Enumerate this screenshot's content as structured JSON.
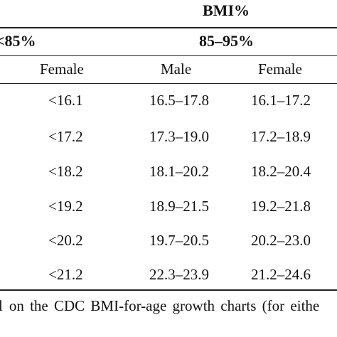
{
  "table": {
    "super_header": "BMI%",
    "group_headers": [
      "85%",
      "85–95%"
    ],
    "column_headers": [
      "Female",
      "Male",
      "Female"
    ],
    "rows": [
      [
        "<16.1",
        "16.5–17.8",
        "16.1–17.2"
      ],
      [
        "<17.2",
        "17.3–19.0",
        "17.2–18.9"
      ],
      [
        "<18.2",
        "18.1–20.2",
        "18.2–20.4"
      ],
      [
        "<19.2",
        "18.9–21.5",
        "19.2–21.8"
      ],
      [
        "<20.2",
        "19.7–20.5",
        "20.2–23.0"
      ],
      [
        "<21.2",
        "22.3–23.9",
        "21.2–24.6"
      ]
    ]
  },
  "footnote": "on the CDC BMI-for-age growth charts (for eithe"
}
